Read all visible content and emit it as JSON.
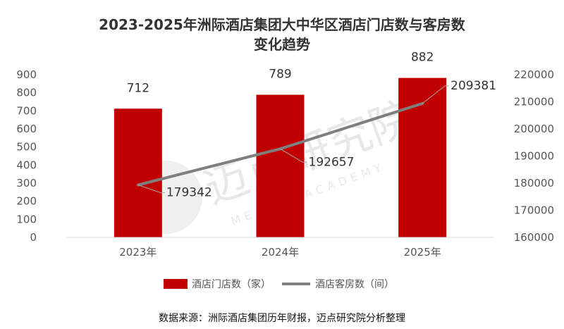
{
  "chart_data": {
    "type": "bar+line",
    "title_lines": [
      "2023-2025年洲际酒店集团大中华区酒店门店数与客房数",
      "变化趋势"
    ],
    "categories": [
      "2023年",
      "2024年",
      "2025年"
    ],
    "series": [
      {
        "name": "酒店门店数（家）",
        "type": "bar",
        "axis": "left",
        "values": [
          712,
          789,
          882
        ],
        "color": "#c00000"
      },
      {
        "name": "酒店客房数（间）",
        "type": "line",
        "axis": "right",
        "values": [
          179342,
          192657,
          209381
        ],
        "color": "#7f7f7f"
      }
    ],
    "left_axis": {
      "ylim": [
        0,
        900
      ],
      "ticks": [
        "0",
        "100",
        "200",
        "300",
        "400",
        "500",
        "600",
        "700",
        "800",
        "900"
      ]
    },
    "right_axis": {
      "ylim": [
        160000,
        220000
      ],
      "ticks": [
        "160000",
        "170000",
        "180000",
        "190000",
        "200000",
        "210000",
        "220000"
      ]
    },
    "bar_labels": [
      "712",
      "789",
      "882"
    ],
    "line_labels": [
      "179342",
      "192657",
      "209381"
    ],
    "legend_position": "bottom",
    "grid": false
  },
  "watermark": {
    "text": "迈点研究院",
    "subtext": "MEADIN ACADEMY"
  },
  "source_note": "数据来源：洲际酒店集团历年财报，迈点研究院分析整理"
}
